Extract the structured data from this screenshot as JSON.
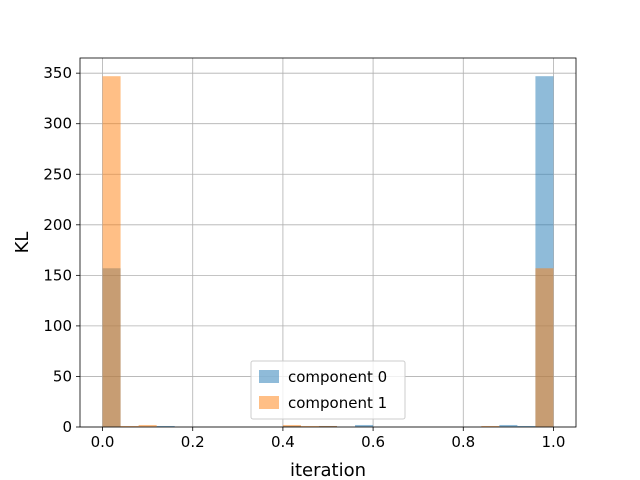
{
  "chart_data": {
    "type": "bar",
    "title": "",
    "xlabel": "iteration",
    "ylabel": "KL",
    "xlim": [
      -0.05,
      1.05
    ],
    "ylim": [
      0,
      365
    ],
    "xticks": [
      0.0,
      0.2,
      0.4,
      0.6,
      0.8,
      1.0
    ],
    "xtick_labels": [
      "0.0",
      "0.2",
      "0.4",
      "0.6",
      "0.8",
      "1.0"
    ],
    "yticks": [
      0,
      50,
      100,
      150,
      200,
      250,
      300,
      350
    ],
    "ytick_labels": [
      "0",
      "50",
      "100",
      "150",
      "200",
      "250",
      "300",
      "350"
    ],
    "grid": true,
    "legend_position": "bottom-center",
    "bin_width": 0.04,
    "series": [
      {
        "name": "component 0",
        "color": "#1f77b4",
        "alpha": 0.5,
        "bins": [
          {
            "x0": 0.0,
            "count": 157
          },
          {
            "x0": 0.12,
            "count": 1
          },
          {
            "x0": 0.4,
            "count": 1
          },
          {
            "x0": 0.48,
            "count": 1
          },
          {
            "x0": 0.56,
            "count": 2
          },
          {
            "x0": 0.88,
            "count": 2
          },
          {
            "x0": 0.92,
            "count": 1
          },
          {
            "x0": 0.96,
            "count": 347
          }
        ]
      },
      {
        "name": "component 1",
        "color": "#ff7f0e",
        "alpha": 0.5,
        "bins": [
          {
            "x0": 0.0,
            "count": 347
          },
          {
            "x0": 0.04,
            "count": 1
          },
          {
            "x0": 0.08,
            "count": 2
          },
          {
            "x0": 0.4,
            "count": 2
          },
          {
            "x0": 0.44,
            "count": 1
          },
          {
            "x0": 0.48,
            "count": 1
          },
          {
            "x0": 0.84,
            "count": 1
          },
          {
            "x0": 0.96,
            "count": 157
          }
        ]
      }
    ]
  }
}
